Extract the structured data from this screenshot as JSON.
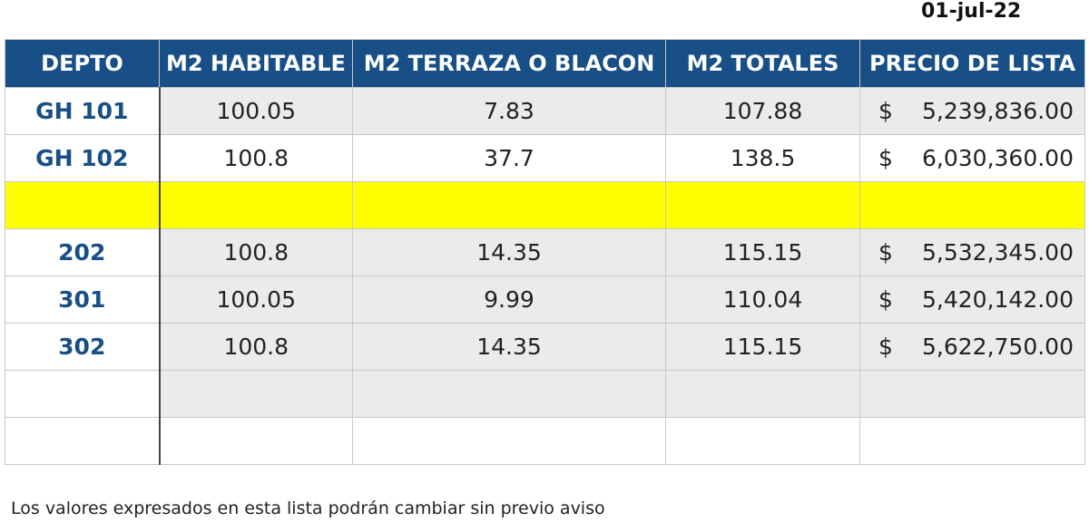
{
  "date": "01-jul-22",
  "table": {
    "header": [
      "DEPTO",
      "M2 HABITABLE",
      "M2 TERRAZA O BLACON",
      "M2 TOTALES",
      "PRECIO DE LISTA"
    ],
    "rows": [
      [
        "GH 101",
        "100.05",
        "7.83",
        "107.88",
        {
          "symbol": "$",
          "amount": "5,239,836.00"
        }
      ],
      [
        "GH 102",
        "100.8",
        "37.7",
        "138.5",
        {
          "symbol": "$",
          "amount": "6,030,360.00"
        }
      ],
      [
        "202",
        "100.8",
        "14.35",
        "115.15",
        {
          "symbol": "$",
          "amount": "5,532,345.00"
        }
      ],
      [
        "301",
        "100.05",
        "9.99",
        "110.04",
        {
          "symbol": "$",
          "amount": "5,420,142.00"
        }
      ],
      [
        "302",
        "100.8",
        "14.35",
        "115.15",
        {
          "symbol": "$",
          "amount": "5,622,750.00"
        }
      ]
    ]
  },
  "footer_note": "Los valores expresados en esta lista podrán cambiar sin previo aviso"
}
